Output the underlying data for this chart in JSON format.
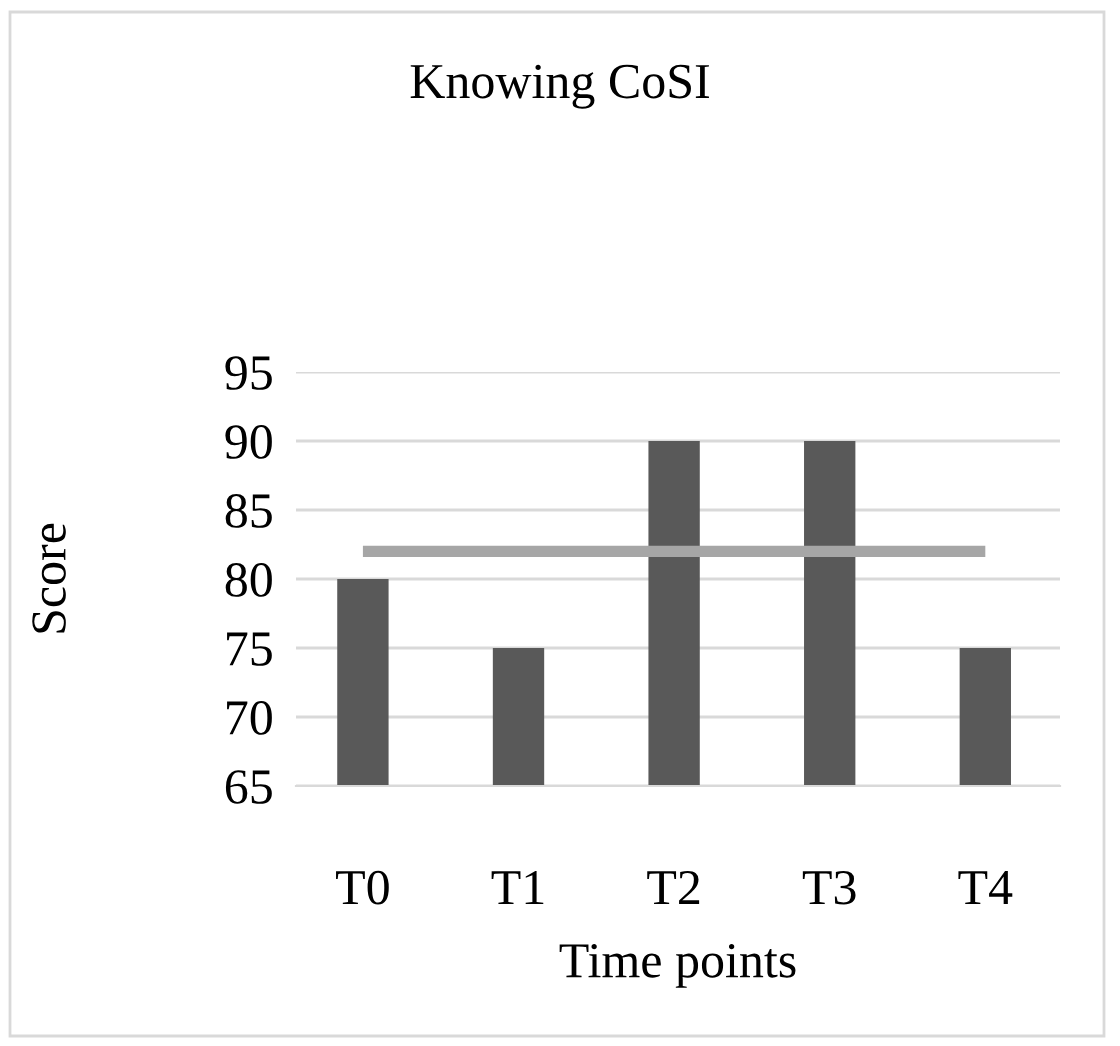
{
  "chart_data": {
    "type": "bar",
    "title": "Knowing CoSI",
    "xlabel": "Time points",
    "ylabel": "Score",
    "categories": [
      "T0",
      "T1",
      "T2",
      "T3",
      "T4"
    ],
    "series": [
      {
        "color": "#595959",
        "values": [
          80,
          75,
          90,
          90,
          75
        ]
      },
      {
        "type": "line",
        "color": "#a6a6a6",
        "values": [
          82,
          82,
          82,
          82,
          82
        ],
        "marker": "none",
        "line_style": "solid"
      }
    ],
    "ylim": [
      65,
      95
    ],
    "yticks": [
      65,
      70,
      75,
      80,
      85,
      90,
      95
    ],
    "grid": "y",
    "legend": false
  }
}
